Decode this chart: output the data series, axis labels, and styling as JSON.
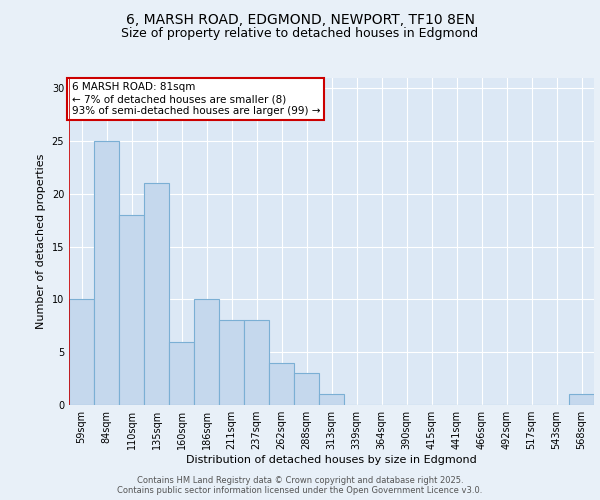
{
  "title_line1": "6, MARSH ROAD, EDGMOND, NEWPORT, TF10 8EN",
  "title_line2": "Size of property relative to detached houses in Edgmond",
  "categories": [
    "59sqm",
    "84sqm",
    "110sqm",
    "135sqm",
    "160sqm",
    "186sqm",
    "211sqm",
    "237sqm",
    "262sqm",
    "288sqm",
    "313sqm",
    "339sqm",
    "364sqm",
    "390sqm",
    "415sqm",
    "441sqm",
    "466sqm",
    "492sqm",
    "517sqm",
    "543sqm",
    "568sqm"
  ],
  "values": [
    10,
    25,
    18,
    21,
    6,
    10,
    8,
    8,
    4,
    3,
    1,
    0,
    0,
    0,
    0,
    0,
    0,
    0,
    0,
    0,
    1
  ],
  "bar_color": "#c5d8ed",
  "bar_edge_color": "#7bafd4",
  "bar_linewidth": 0.8,
  "ylabel": "Number of detached properties",
  "xlabel": "Distribution of detached houses by size in Edgmond",
  "ylim": [
    0,
    31
  ],
  "yticks": [
    0,
    5,
    10,
    15,
    20,
    25,
    30
  ],
  "background_color": "#e8f0f8",
  "plot_bg_color": "#dce8f5",
  "grid_color": "#ffffff",
  "annotation_title": "6 MARSH ROAD: 81sqm",
  "annotation_line1": "← 7% of detached houses are smaller (8)",
  "annotation_line2": "93% of semi-detached houses are larger (99) →",
  "annotation_box_color": "#ffffff",
  "annotation_border_color": "#cc0000",
  "footer_line1": "Contains HM Land Registry data © Crown copyright and database right 2025.",
  "footer_line2": "Contains public sector information licensed under the Open Government Licence v3.0.",
  "title_fontsize": 10,
  "subtitle_fontsize": 9,
  "tick_fontsize": 7,
  "ylabel_fontsize": 8,
  "xlabel_fontsize": 8,
  "annotation_fontsize": 7.5,
  "footer_fontsize": 6
}
